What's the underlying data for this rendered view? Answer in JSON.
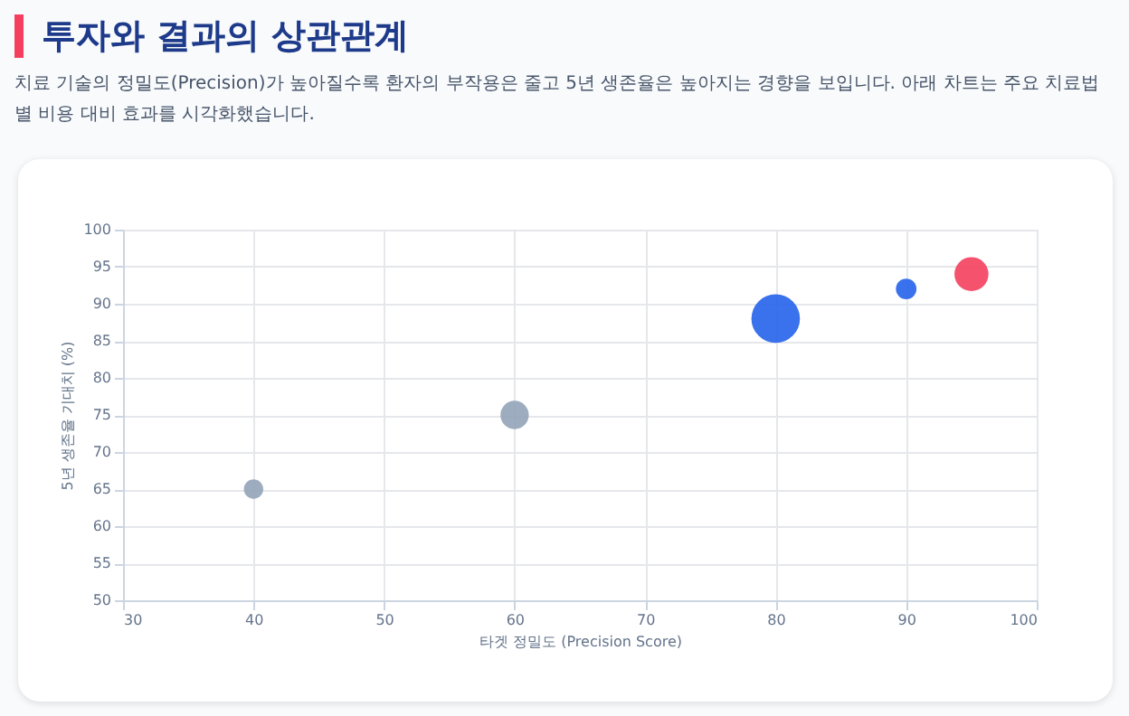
{
  "chart_data": {
    "type": "bubble",
    "title": "투자와 결과의 상관관계",
    "subtitle": "치료 기술의 정밀도(Precision)가 높아질수록 환자의 부작용은 줄고 5년 생존율은 높아지는 경향을 보입니다. 아래 차트는 주요 치료법 별 비용 대비 효과를 시각화했습니다.",
    "xlabel": "타겟 정밀도 (Precision Score)",
    "ylabel": "5년 생존율 기대치 (%)",
    "x": [
      40,
      60,
      80,
      90,
      95
    ],
    "values": [
      65,
      75,
      88,
      92,
      94
    ],
    "sizes": [
      0.16,
      0.34,
      1,
      0.18,
      0.49
    ],
    "colors": [
      "#94a3b8",
      "#94a3b8",
      "#2563eb",
      "#2563eb",
      "#f43f5e"
    ],
    "xlim": [
      30,
      100
    ],
    "xticks": [
      30,
      40,
      50,
      60,
      70,
      80,
      90,
      100
    ],
    "ylim": [
      50,
      100
    ],
    "yticks": [
      50,
      55,
      60,
      65,
      70,
      75,
      80,
      85,
      90,
      95,
      100
    ],
    "grid": true
  }
}
